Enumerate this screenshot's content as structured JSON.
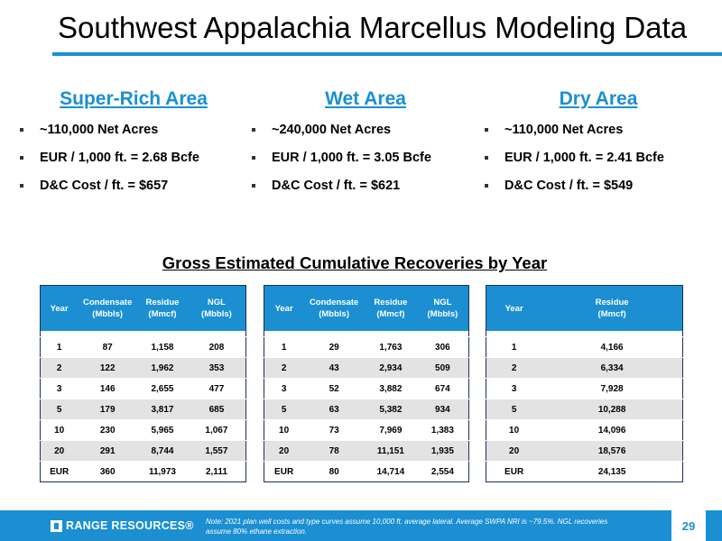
{
  "title": "Southwest Appalachia Marcellus Modeling Data",
  "areas": [
    {
      "name": "Super-Rich Area",
      "bullets": [
        "~110,000 Net Acres",
        "EUR / 1,000 ft. = 2.68 Bcfe",
        "D&C Cost / ft. = $657"
      ]
    },
    {
      "name": "Wet Area",
      "bullets": [
        "~240,000 Net Acres",
        "EUR / 1,000 ft. = 3.05 Bcfe",
        "D&C Cost / ft. = $621"
      ]
    },
    {
      "name": "Dry Area",
      "bullets": [
        "~110,000 Net Acres",
        "EUR / 1,000 ft. = 2.41 Bcfe",
        "D&C Cost / ft. = $549"
      ]
    }
  ],
  "section_title": "Gross Estimated Cumulative Recoveries by Year",
  "tables": [
    {
      "headers": [
        "Year",
        "Condensate (Mbbls)",
        "Residue (Mmcf)",
        "NGL (Mbbls)"
      ],
      "rows": [
        [
          "1",
          "87",
          "1,158",
          "208"
        ],
        [
          "2",
          "122",
          "1,962",
          "353"
        ],
        [
          "3",
          "146",
          "2,655",
          "477"
        ],
        [
          "5",
          "179",
          "3,817",
          "685"
        ],
        [
          "10",
          "230",
          "5,965",
          "1,067"
        ],
        [
          "20",
          "291",
          "8,744",
          "1,557"
        ],
        [
          "EUR",
          "360",
          "11,973",
          "2,111"
        ]
      ]
    },
    {
      "headers": [
        "Year",
        "Condensate (Mbbls)",
        "Residue (Mmcf)",
        "NGL (Mbbls)"
      ],
      "rows": [
        [
          "1",
          "29",
          "1,763",
          "306"
        ],
        [
          "2",
          "43",
          "2,934",
          "509"
        ],
        [
          "3",
          "52",
          "3,882",
          "674"
        ],
        [
          "5",
          "63",
          "5,382",
          "934"
        ],
        [
          "10",
          "73",
          "7,969",
          "1,383"
        ],
        [
          "20",
          "78",
          "11,151",
          "1,935"
        ],
        [
          "EUR",
          "80",
          "14,714",
          "2,554"
        ]
      ]
    },
    {
      "headers": [
        "Year",
        "Residue (Mmcf)"
      ],
      "rows": [
        [
          "1",
          "4,166"
        ],
        [
          "2",
          "6,334"
        ],
        [
          "3",
          "7,928"
        ],
        [
          "5",
          "10,288"
        ],
        [
          "10",
          "14,096"
        ],
        [
          "20",
          "18,576"
        ],
        [
          "EUR",
          "24,135"
        ]
      ]
    }
  ],
  "footer": {
    "logo_text": "RANGE RESOURCES®",
    "note": "Note: 2021 plan well costs and type curves assume 10,000 ft. average lateral. Average SWPA NRI is ~79.5%. NGL recoveries assume 80% ethane extraction.",
    "page_number": "29"
  },
  "colors": {
    "accent": "#1b8fd2",
    "table_border": "#1c2f5a",
    "row_shade": "#e3e3e3"
  }
}
